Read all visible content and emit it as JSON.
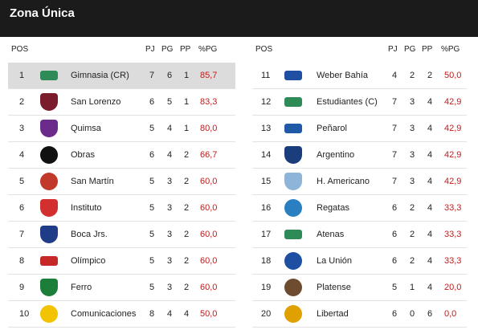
{
  "header": {
    "title": "Zona Única"
  },
  "columns": {
    "pos": "POS",
    "pj": "PJ",
    "pg": "PG",
    "pp": "PP",
    "pct": "%PG"
  },
  "left_table": [
    {
      "pos": "1",
      "team": "Gimnasia (CR)",
      "pj": "7",
      "pg": "6",
      "pp": "1",
      "pct": "85,7",
      "crest": {
        "icon": "gimnasia-crest-icon",
        "color": "#2e8b57",
        "shape": "bar"
      }
    },
    {
      "pos": "2",
      "team": "San Lorenzo",
      "pj": "6",
      "pg": "5",
      "pp": "1",
      "pct": "83,3",
      "crest": {
        "icon": "san-lorenzo-crest-icon",
        "color": "#7a1c2c",
        "shape": "shield"
      }
    },
    {
      "pos": "3",
      "team": "Quimsa",
      "pj": "5",
      "pg": "4",
      "pp": "1",
      "pct": "80,0",
      "crest": {
        "icon": "quimsa-crest-icon",
        "color": "#6b2b8a",
        "shape": "shield"
      }
    },
    {
      "pos": "4",
      "team": "Obras",
      "pj": "6",
      "pg": "4",
      "pp": "2",
      "pct": "66,7",
      "crest": {
        "icon": "obras-crest-icon",
        "color": "#111111",
        "shape": "round"
      }
    },
    {
      "pos": "5",
      "team": "San Martín",
      "pj": "5",
      "pg": "3",
      "pp": "2",
      "pct": "60,0",
      "crest": {
        "icon": "san-martin-crest-icon",
        "color": "#c0392b",
        "shape": "round"
      }
    },
    {
      "pos": "6",
      "team": "Instituto",
      "pj": "5",
      "pg": "3",
      "pp": "2",
      "pct": "60,0",
      "crest": {
        "icon": "instituto-crest-icon",
        "color": "#d32f2f",
        "shape": "shield"
      }
    },
    {
      "pos": "7",
      "team": "Boca Jrs.",
      "pj": "5",
      "pg": "3",
      "pp": "2",
      "pct": "60,0",
      "crest": {
        "icon": "boca-crest-icon",
        "color": "#1f3c88",
        "shape": "shield"
      }
    },
    {
      "pos": "8",
      "team": "Olímpico",
      "pj": "5",
      "pg": "3",
      "pp": "2",
      "pct": "60,0",
      "crest": {
        "icon": "olimpico-crest-icon",
        "color": "#c62828",
        "shape": "bar"
      }
    },
    {
      "pos": "9",
      "team": "Ferro",
      "pj": "5",
      "pg": "3",
      "pp": "2",
      "pct": "60,0",
      "crest": {
        "icon": "ferro-crest-icon",
        "color": "#1b7f3a",
        "shape": "shield"
      }
    },
    {
      "pos": "10",
      "team": "Comunicaciones",
      "pj": "8",
      "pg": "4",
      "pp": "4",
      "pct": "50,0",
      "crest": {
        "icon": "comunicaciones-crest-icon",
        "color": "#f2c300",
        "shape": "round"
      }
    }
  ],
  "right_table": [
    {
      "pos": "11",
      "team": "Weber Bahía",
      "pj": "4",
      "pg": "2",
      "pp": "2",
      "pct": "50,0",
      "crest": {
        "icon": "weber-bahia-crest-icon",
        "color": "#1e4fa3",
        "shape": "bar"
      }
    },
    {
      "pos": "12",
      "team": "Estudiantes (C)",
      "pj": "7",
      "pg": "3",
      "pp": "4",
      "pct": "42,9",
      "crest": {
        "icon": "estudiantes-crest-icon",
        "color": "#2e8b57",
        "shape": "bar"
      }
    },
    {
      "pos": "13",
      "team": "Peñarol",
      "pj": "7",
      "pg": "3",
      "pp": "4",
      "pct": "42,9",
      "crest": {
        "icon": "penarol-crest-icon",
        "color": "#1e5aa8",
        "shape": "bar"
      }
    },
    {
      "pos": "14",
      "team": "Argentino",
      "pj": "7",
      "pg": "3",
      "pp": "4",
      "pct": "42,9",
      "crest": {
        "icon": "argentino-crest-icon",
        "color": "#1a3d7c",
        "shape": "shield"
      }
    },
    {
      "pos": "15",
      "team": "H. Americano",
      "pj": "7",
      "pg": "3",
      "pp": "4",
      "pct": "42,9",
      "crest": {
        "icon": "h-americano-crest-icon",
        "color": "#8fb4d9",
        "shape": "shield"
      }
    },
    {
      "pos": "16",
      "team": "Regatas",
      "pj": "6",
      "pg": "2",
      "pp": "4",
      "pct": "33,3",
      "crest": {
        "icon": "regatas-crest-icon",
        "color": "#2a7fc1",
        "shape": "round"
      }
    },
    {
      "pos": "17",
      "team": "Atenas",
      "pj": "6",
      "pg": "2",
      "pp": "4",
      "pct": "33,3",
      "crest": {
        "icon": "atenas-crest-icon",
        "color": "#2e8b57",
        "shape": "bar"
      }
    },
    {
      "pos": "18",
      "team": "La Unión",
      "pj": "6",
      "pg": "2",
      "pp": "4",
      "pct": "33,3",
      "crest": {
        "icon": "la-union-crest-icon",
        "color": "#1e4fa3",
        "shape": "round"
      }
    },
    {
      "pos": "19",
      "team": "Platense",
      "pj": "5",
      "pg": "1",
      "pp": "4",
      "pct": "20,0",
      "crest": {
        "icon": "platense-crest-icon",
        "color": "#6d4c2f",
        "shape": "round"
      }
    },
    {
      "pos": "20",
      "team": "Libertad",
      "pj": "6",
      "pg": "0",
      "pp": "6",
      "pct": "0,0",
      "crest": {
        "icon": "libertad-crest-icon",
        "color": "#e0a100",
        "shape": "round"
      }
    }
  ]
}
